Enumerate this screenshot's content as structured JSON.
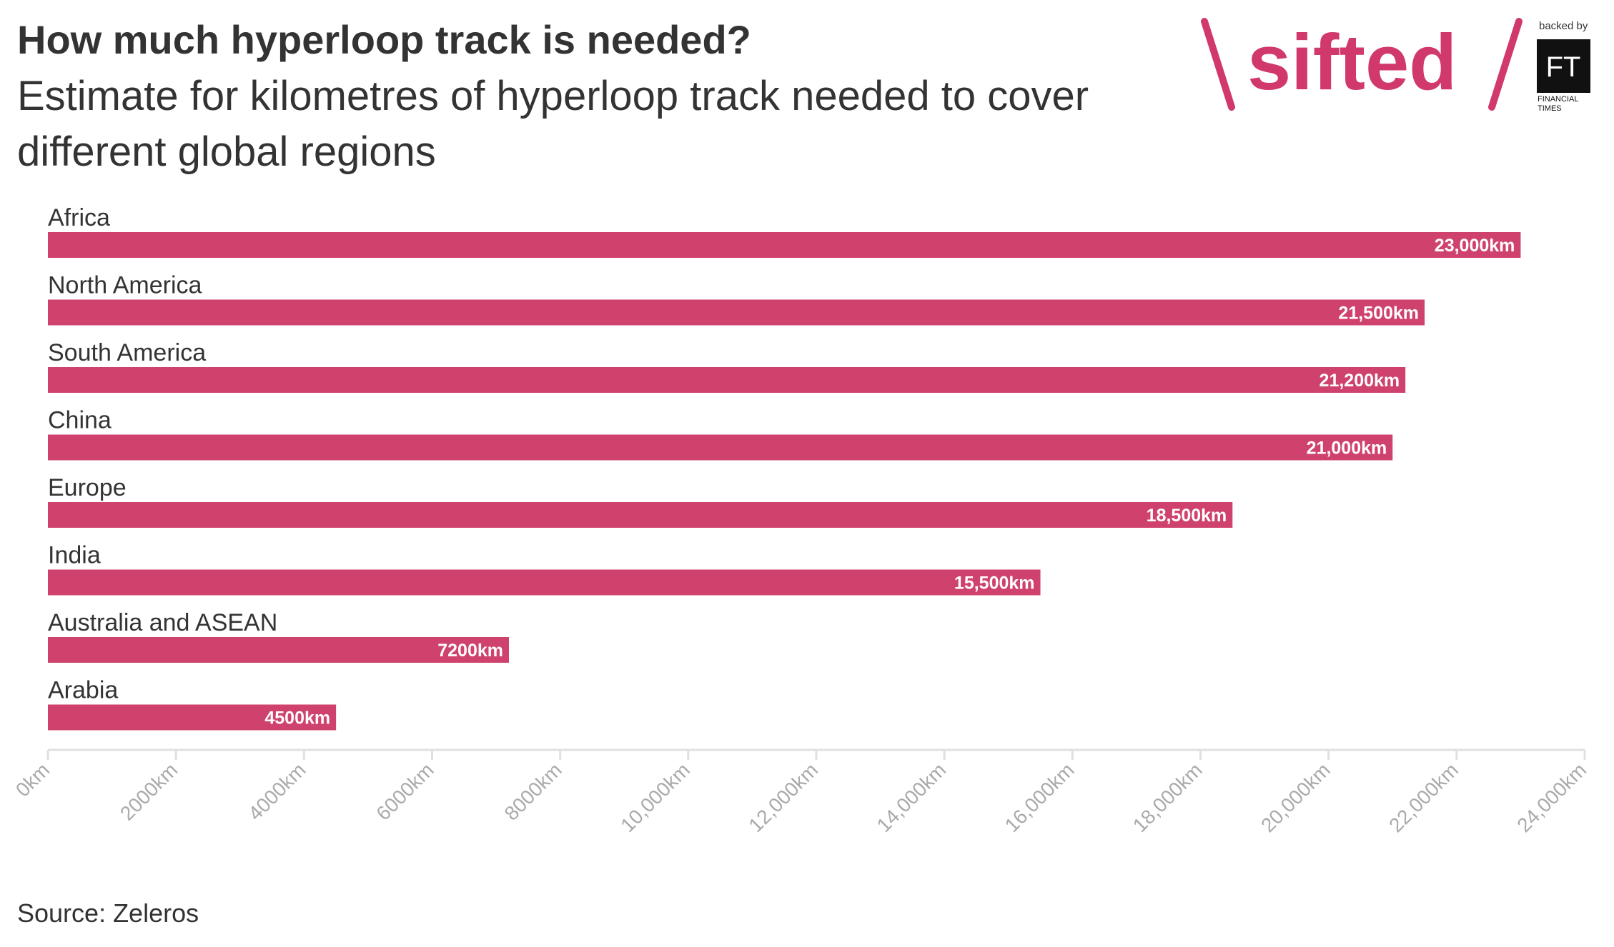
{
  "header": {
    "title": "How much hyperloop track is needed?",
    "subtitle": "Estimate for kilometres of hyperloop track needed to cover different global regions"
  },
  "branding": {
    "logo_text": "sifted",
    "backed_by": "backed by",
    "ft_mark": "FT",
    "ft_line1": "FINANCIAL",
    "ft_line2": "TIMES"
  },
  "footer": {
    "source": "Source: Zeleros"
  },
  "colors": {
    "bar": "#cf426d",
    "brand": "#d1386b",
    "axis_text": "#aaaaaa",
    "axis_line": "#e0e0e0",
    "text": "#333333"
  },
  "chart_data": {
    "type": "bar",
    "orientation": "horizontal",
    "categories": [
      "Africa",
      "North America",
      "South America",
      "China",
      "Europe",
      "India",
      "Australia and ASEAN",
      "Arabia"
    ],
    "values": [
      23000,
      21500,
      21200,
      21000,
      18500,
      15500,
      7200,
      4500
    ],
    "data_labels": [
      "23,000km",
      "21,500km",
      "21,200km",
      "21,000km",
      "18,500km",
      "15,500km",
      "7200km",
      "4500km"
    ],
    "xlim": [
      0,
      24000
    ],
    "ticks": [
      0,
      2000,
      4000,
      6000,
      8000,
      10000,
      12000,
      14000,
      16000,
      18000,
      20000,
      22000,
      24000
    ],
    "tick_labels": [
      "0km",
      "2000km",
      "4000km",
      "6000km",
      "8000km",
      "10,000km",
      "12,000km",
      "14,000km",
      "16,000km",
      "18,000km",
      "20,000km",
      "22,000km",
      "24,000km"
    ],
    "grid": false
  }
}
